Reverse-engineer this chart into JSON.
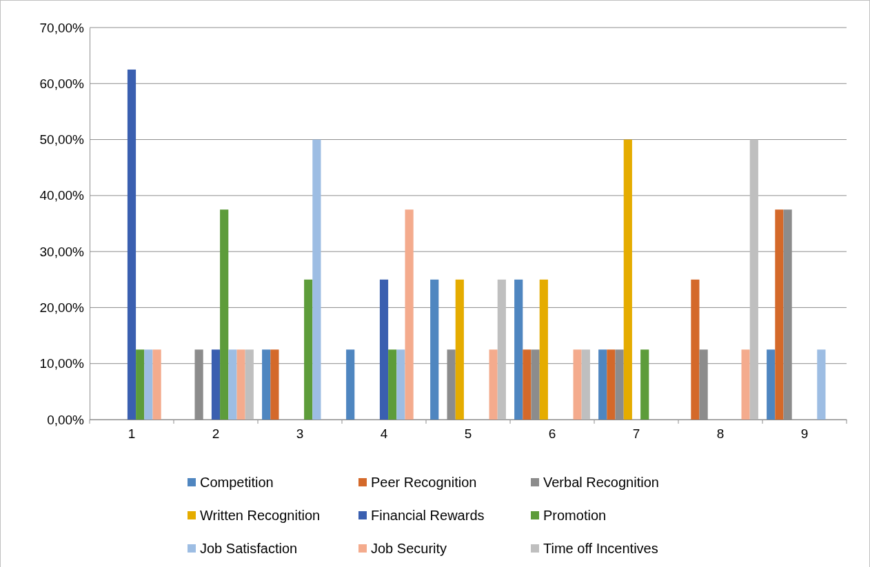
{
  "chart_data": {
    "type": "bar",
    "categories": [
      "1",
      "2",
      "3",
      "4",
      "5",
      "6",
      "7",
      "8",
      "9"
    ],
    "series": [
      {
        "name": "Competition",
        "color": "#4f86c0",
        "values": [
          0,
          0,
          12.5,
          12.5,
          25,
          25,
          12.5,
          0,
          12.5
        ]
      },
      {
        "name": "Peer Recognition",
        "color": "#d4692a",
        "values": [
          0,
          0,
          12.5,
          0,
          0,
          12.5,
          12.5,
          25,
          37.5
        ]
      },
      {
        "name": "Verbal Recognition",
        "color": "#8c8c8c",
        "values": [
          0,
          12.5,
          0,
          0,
          12.5,
          12.5,
          12.5,
          12.5,
          37.5
        ]
      },
      {
        "name": "Written Recognition",
        "color": "#e5ac00",
        "values": [
          0,
          0,
          0,
          0,
          25,
          25,
          50,
          0,
          0
        ]
      },
      {
        "name": "Financial Rewards",
        "color": "#3a5fb0",
        "values": [
          62.5,
          12.5,
          0,
          25,
          0,
          0,
          0,
          0,
          0
        ]
      },
      {
        "name": "Promotion",
        "color": "#5d9c3a",
        "values": [
          12.5,
          37.5,
          25,
          12.5,
          0,
          0,
          12.5,
          0,
          0
        ]
      },
      {
        "name": "Job Satisfaction",
        "color": "#9dbde3",
        "values": [
          12.5,
          12.5,
          50,
          12.5,
          0,
          0,
          0,
          0,
          12.5
        ]
      },
      {
        "name": "Job Security",
        "color": "#f4ab8d",
        "values": [
          12.5,
          12.5,
          0,
          37.5,
          12.5,
          12.5,
          0,
          12.5,
          0
        ]
      },
      {
        "name": "Time off Incentives",
        "color": "#bfbfbf",
        "values": [
          0,
          12.5,
          0,
          0,
          25,
          12.5,
          0,
          50,
          0
        ]
      }
    ],
    "ylim": [
      0,
      70
    ],
    "yticks": [
      {
        "value": 0,
        "label": "0,00%"
      },
      {
        "value": 10,
        "label": "10,00%"
      },
      {
        "value": 20,
        "label": "20,00%"
      },
      {
        "value": 30,
        "label": "30,00%"
      },
      {
        "value": 40,
        "label": "40,00%"
      },
      {
        "value": 50,
        "label": "50,00%"
      },
      {
        "value": 60,
        "label": "60,00%"
      },
      {
        "value": 70,
        "label": "70,00%"
      }
    ],
    "grid": "y",
    "legend": "bottom"
  }
}
